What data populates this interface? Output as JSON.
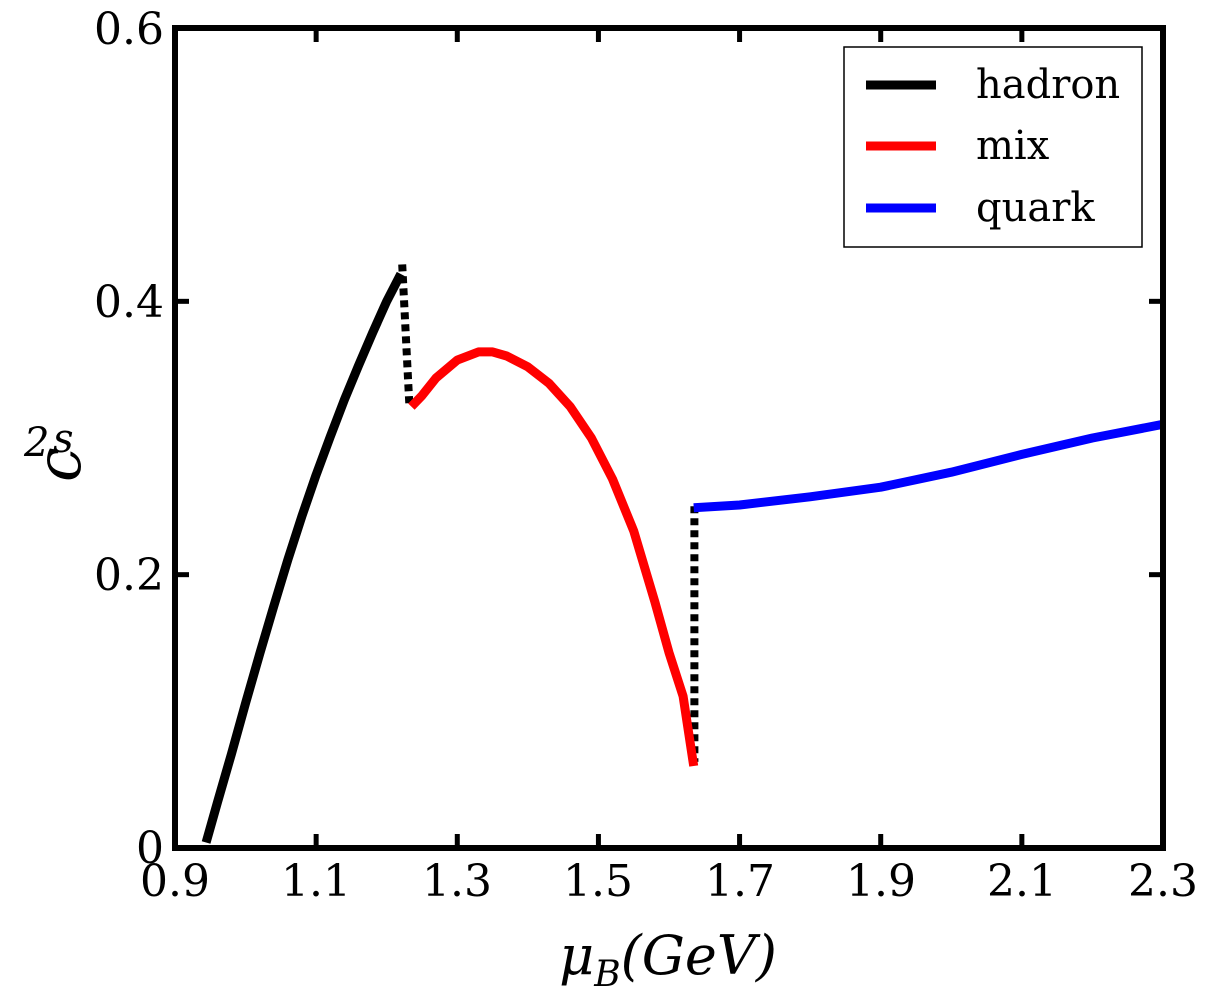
{
  "chart_data": {
    "type": "line",
    "xlabel_main": "μ",
    "xlabel_sub": "B",
    "xlabel_paren": "(GeV)",
    "ylabel_main": "c",
    "ylabel_sub": "s",
    "ylabel_sup": "2",
    "xlim": [
      0.9,
      2.3
    ],
    "ylim": [
      0,
      0.6
    ],
    "xticks": [
      0.9,
      1.1,
      1.3,
      1.5,
      1.7,
      1.9,
      2.1,
      2.3
    ],
    "xtick_labels": [
      "0.9",
      "1.1",
      "1.3",
      "1.5",
      "1.7",
      "1.9",
      "2.1",
      "2.3"
    ],
    "yticks": [
      0,
      0.2,
      0.4,
      0.6
    ],
    "ytick_labels": [
      "0",
      "0.2",
      "0.4",
      "0.6"
    ],
    "legend_position": "top-right",
    "series": [
      {
        "name": "hadron",
        "color": "#000000",
        "style": "solid",
        "x": [
          0.944,
          0.96,
          0.98,
          1.0,
          1.02,
          1.04,
          1.06,
          1.08,
          1.1,
          1.12,
          1.14,
          1.16,
          1.18,
          1.2,
          1.22
        ],
        "y": [
          0.004,
          0.033,
          0.069,
          0.106,
          0.142,
          0.177,
          0.211,
          0.243,
          0.273,
          0.301,
          0.328,
          0.353,
          0.377,
          0.4,
          0.42
        ]
      },
      {
        "name": "mix",
        "color": "#ff0000",
        "style": "solid",
        "x": [
          1.235,
          1.25,
          1.27,
          1.3,
          1.33,
          1.35,
          1.37,
          1.4,
          1.43,
          1.46,
          1.49,
          1.52,
          1.55,
          1.58,
          1.6,
          1.62,
          1.635
        ],
        "y": [
          0.323,
          0.331,
          0.344,
          0.357,
          0.363,
          0.363,
          0.36,
          0.352,
          0.34,
          0.323,
          0.3,
          0.27,
          0.232,
          0.18,
          0.143,
          0.111,
          0.06
        ]
      },
      {
        "name": "quark",
        "color": "#0000ff",
        "style": "solid",
        "x": [
          1.635,
          1.7,
          1.8,
          1.9,
          2.0,
          2.1,
          2.2,
          2.3
        ],
        "y": [
          0.249,
          0.251,
          0.257,
          0.264,
          0.275,
          0.288,
          0.3,
          0.31
        ]
      }
    ],
    "transitions": [
      {
        "style": "dotted",
        "color": "#000000",
        "x": [
          1.222,
          1.232
        ],
        "y": [
          0.427,
          0.325
        ]
      },
      {
        "style": "dotted",
        "color": "#000000",
        "x": [
          1.636,
          1.636
        ],
        "y": [
          0.25,
          0.063
        ]
      }
    ]
  }
}
